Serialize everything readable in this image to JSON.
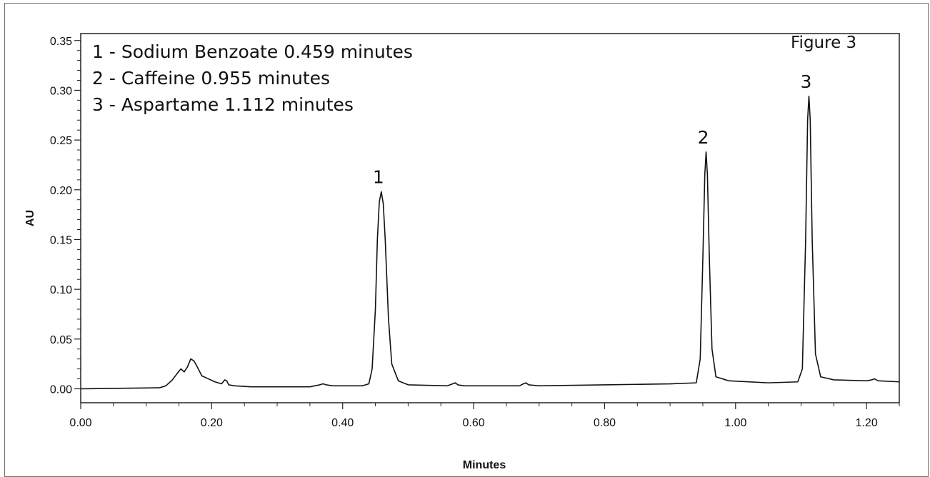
{
  "chart_data": {
    "type": "line",
    "figure_label": "Figure 3",
    "xlabel": "Minutes",
    "ylabel": "AU",
    "xlim": [
      0.0,
      1.25
    ],
    "ylim": [
      -0.014,
      0.357
    ],
    "x_ticks": [
      0.0,
      0.2,
      0.4,
      0.6,
      0.8,
      1.0,
      1.2
    ],
    "x_tick_labels": [
      "0.00",
      "0.20",
      "0.40",
      "0.60",
      "0.80",
      "1.00",
      "1.20"
    ],
    "y_ticks": [
      0.0,
      0.05,
      0.1,
      0.15,
      0.2,
      0.25,
      0.3,
      0.35
    ],
    "y_tick_labels": [
      "0.00",
      "0.05",
      "0.10",
      "0.15",
      "0.20",
      "0.25",
      "0.30",
      "0.35"
    ],
    "grid": false,
    "legend_position": "top-left",
    "legend": [
      "1 - Sodium Benzoate  0.459 minutes",
      "2 - Caffeine 0.955  minutes",
      "3 - Aspartame 1.112 minutes"
    ],
    "peak_labels": [
      {
        "label": "1",
        "x": 0.459,
        "y": 0.198
      },
      {
        "label": "2",
        "x": 0.955,
        "y": 0.238
      },
      {
        "label": "3",
        "x": 1.112,
        "y": 0.294
      }
    ],
    "series": [
      {
        "values_x": [
          0.0,
          0.12,
          0.13,
          0.14,
          0.148,
          0.153,
          0.158,
          0.163,
          0.168,
          0.173,
          0.178,
          0.185,
          0.195,
          0.205,
          0.215,
          0.22,
          0.223,
          0.226,
          0.235,
          0.26,
          0.3,
          0.35,
          0.365,
          0.37,
          0.375,
          0.385,
          0.4,
          0.43,
          0.44,
          0.445,
          0.45,
          0.453,
          0.456,
          0.459,
          0.462,
          0.465,
          0.47,
          0.475,
          0.485,
          0.5,
          0.56,
          0.568,
          0.572,
          0.576,
          0.585,
          0.6,
          0.67,
          0.676,
          0.68,
          0.684,
          0.7,
          0.8,
          0.9,
          0.94,
          0.946,
          0.95,
          0.953,
          0.955,
          0.957,
          0.96,
          0.964,
          0.97,
          0.99,
          1.05,
          1.095,
          1.102,
          1.107,
          1.11,
          1.112,
          1.114,
          1.117,
          1.122,
          1.13,
          1.15,
          1.2,
          1.208,
          1.212,
          1.218,
          1.25
        ],
        "values_y": [
          0.0,
          0.001,
          0.003,
          0.009,
          0.016,
          0.02,
          0.017,
          0.022,
          0.03,
          0.028,
          0.022,
          0.013,
          0.01,
          0.007,
          0.005,
          0.009,
          0.008,
          0.004,
          0.003,
          0.002,
          0.002,
          0.002,
          0.004,
          0.005,
          0.004,
          0.003,
          0.003,
          0.003,
          0.005,
          0.02,
          0.08,
          0.15,
          0.188,
          0.198,
          0.186,
          0.15,
          0.07,
          0.025,
          0.008,
          0.004,
          0.003,
          0.005,
          0.006,
          0.004,
          0.003,
          0.003,
          0.003,
          0.005,
          0.006,
          0.004,
          0.003,
          0.004,
          0.005,
          0.006,
          0.03,
          0.13,
          0.215,
          0.238,
          0.215,
          0.13,
          0.04,
          0.012,
          0.008,
          0.006,
          0.007,
          0.02,
          0.15,
          0.27,
          0.294,
          0.27,
          0.15,
          0.035,
          0.012,
          0.009,
          0.008,
          0.009,
          0.01,
          0.008,
          0.007
        ]
      }
    ]
  }
}
